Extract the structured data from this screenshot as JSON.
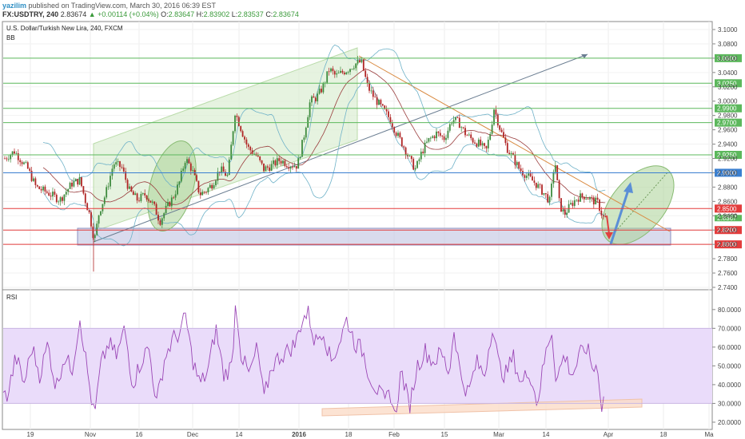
{
  "header": {
    "user": "yazilim",
    "published_text": "published on TradingView.com, March 30, 2016 06:39 EST",
    "symbol": "FX:USDTRY, 240",
    "last": "2.83674",
    "change": "▲ +0.00114 (+0.04%)",
    "o_label": "O:",
    "o_value": "2.83647",
    "h_label": "H:",
    "h_value": "2.83902",
    "l_label": "L:",
    "l_value": "2.83537",
    "c_label": "C:",
    "c_value": "2.83674"
  },
  "chart_data": [
    {
      "type": "candlestick",
      "title": "U.S. Dollar/Turkish New Lira, 240, FXCM",
      "indicator": "BB",
      "ylim": [
        2.74,
        3.1
      ],
      "y_ticks": [
        "3.1000",
        "3.0800",
        "3.0600",
        "3.0400",
        "3.0200",
        "3.0000",
        "2.9800",
        "2.9600",
        "2.9400",
        "2.9200",
        "2.9000",
        "2.8800",
        "2.8600",
        "2.8400",
        "2.8200",
        "2.8000",
        "2.7800",
        "2.7600",
        "2.7400"
      ],
      "x_ticks": [
        "19",
        "Nov",
        "16",
        "Dec",
        "14",
        "2016",
        "18",
        "Feb",
        "15",
        "Mar",
        "14",
        "Apr",
        "18",
        "Ma"
      ],
      "price_path": [
        [
          0,
          2.915
        ],
        [
          18,
          2.93
        ],
        [
          35,
          2.905
        ],
        [
          45,
          2.88
        ],
        [
          60,
          2.872
        ],
        [
          75,
          2.862
        ],
        [
          90,
          2.885
        ],
        [
          100,
          2.89
        ],
        [
          107,
          2.86
        ],
        [
          112,
          2.842
        ],
        [
          118,
          2.805
        ],
        [
          124,
          2.845
        ],
        [
          132,
          2.87
        ],
        [
          142,
          2.913
        ],
        [
          152,
          2.908
        ],
        [
          162,
          2.875
        ],
        [
          172,
          2.862
        ],
        [
          182,
          2.87
        ],
        [
          192,
          2.855
        ],
        [
          200,
          2.832
        ],
        [
          208,
          2.85
        ],
        [
          216,
          2.865
        ],
        [
          224,
          2.885
        ],
        [
          232,
          2.92
        ],
        [
          240,
          2.905
        ],
        [
          250,
          2.87
        ],
        [
          258,
          2.875
        ],
        [
          266,
          2.885
        ],
        [
          275,
          2.905
        ],
        [
          285,
          2.895
        ],
        [
          294,
          2.985
        ],
        [
          302,
          2.96
        ],
        [
          310,
          2.935
        ],
        [
          320,
          2.925
        ],
        [
          330,
          2.905
        ],
        [
          340,
          2.91
        ],
        [
          350,
          2.918
        ],
        [
          360,
          2.912
        ],
        [
          372,
          2.91
        ],
        [
          380,
          2.95
        ],
        [
          388,
          3.0
        ],
        [
          396,
          3.005
        ],
        [
          404,
          3.02
        ],
        [
          412,
          3.045
        ],
        [
          420,
          3.035
        ],
        [
          428,
          3.04
        ],
        [
          436,
          3.045
        ],
        [
          444,
          3.052
        ],
        [
          452,
          3.055
        ],
        [
          460,
          3.02
        ],
        [
          468,
          3.005
        ],
        [
          478,
          2.99
        ],
        [
          488,
          2.975
        ],
        [
          496,
          2.955
        ],
        [
          506,
          2.935
        ],
        [
          514,
          2.915
        ],
        [
          520,
          2.905
        ],
        [
          528,
          2.93
        ],
        [
          536,
          2.945
        ],
        [
          546,
          2.955
        ],
        [
          556,
          2.948
        ],
        [
          566,
          2.975
        ],
        [
          574,
          2.97
        ],
        [
          582,
          2.955
        ],
        [
          592,
          2.945
        ],
        [
          600,
          2.94
        ],
        [
          608,
          2.93
        ],
        [
          614,
          2.96
        ],
        [
          618,
          2.99
        ],
        [
          626,
          2.96
        ],
        [
          634,
          2.935
        ],
        [
          642,
          2.92
        ],
        [
          650,
          2.905
        ],
        [
          660,
          2.895
        ],
        [
          670,
          2.885
        ],
        [
          680,
          2.872
        ],
        [
          688,
          2.86
        ],
        [
          694,
          2.92
        ],
        [
          700,
          2.855
        ],
        [
          706,
          2.842
        ],
        [
          714,
          2.855
        ],
        [
          722,
          2.865
        ],
        [
          732,
          2.868
        ],
        [
          740,
          2.862
        ],
        [
          748,
          2.858
        ],
        [
          754,
          2.838
        ],
        [
          758,
          2.836
        ]
      ],
      "horizontal_levels": [
        {
          "label": "3.0600",
          "color": "#5cb85c"
        },
        {
          "label": "3.0250",
          "color": "#5cb85c"
        },
        {
          "label": "2.9900",
          "color": "#5cb85c"
        },
        {
          "label": "2.9700",
          "color": "#5cb85c"
        },
        {
          "label": "2.9250",
          "color": "#5cb85c"
        },
        {
          "label": "2.9000",
          "color": "#3a7fd0"
        },
        {
          "label": "2.8500",
          "color": "#e33d3d"
        },
        {
          "label": "2.8200",
          "color": "#e33d3d"
        },
        {
          "label": "2.8000",
          "color": "#e33d3d"
        }
      ],
      "axis_overlap_labels": [
        "2.8387",
        "2.8367"
      ]
    },
    {
      "type": "line",
      "title": "RSI",
      "ylim": [
        17,
        88
      ],
      "y_ticks": [
        "80.0000",
        "70.0000",
        "60.0000",
        "50.0000",
        "40.0000",
        "30.0000",
        "20.0000"
      ],
      "band": [
        30,
        70
      ],
      "rsi_path": [
        [
          0,
          32
        ],
        [
          10,
          35
        ],
        [
          20,
          55
        ],
        [
          30,
          40
        ],
        [
          40,
          60
        ],
        [
          50,
          45
        ],
        [
          60,
          62
        ],
        [
          70,
          38
        ],
        [
          80,
          55
        ],
        [
          90,
          48
        ],
        [
          100,
          76
        ],
        [
          110,
          45
        ],
        [
          118,
          22
        ],
        [
          126,
          50
        ],
        [
          136,
          62
        ],
        [
          146,
          55
        ],
        [
          156,
          70
        ],
        [
          166,
          40
        ],
        [
          176,
          52
        ],
        [
          186,
          60
        ],
        [
          196,
          30
        ],
        [
          206,
          54
        ],
        [
          216,
          64
        ],
        [
          226,
          68
        ],
        [
          232,
          77
        ],
        [
          240,
          55
        ],
        [
          250,
          40
        ],
        [
          260,
          47
        ],
        [
          270,
          70
        ],
        [
          280,
          45
        ],
        [
          290,
          50
        ],
        [
          295,
          85
        ],
        [
          302,
          55
        ],
        [
          312,
          45
        ],
        [
          322,
          60
        ],
        [
          330,
          32
        ],
        [
          340,
          50
        ],
        [
          350,
          55
        ],
        [
          360,
          58
        ],
        [
          370,
          62
        ],
        [
          378,
          75
        ],
        [
          386,
          78
        ],
        [
          394,
          62
        ],
        [
          404,
          70
        ],
        [
          414,
          52
        ],
        [
          424,
          62
        ],
        [
          434,
          75
        ],
        [
          444,
          62
        ],
        [
          454,
          58
        ],
        [
          462,
          45
        ],
        [
          472,
          37
        ],
        [
          482,
          30
        ],
        [
          488,
          37
        ],
        [
          494,
          22
        ],
        [
          502,
          48
        ],
        [
          512,
          28
        ],
        [
          522,
          50
        ],
        [
          532,
          58
        ],
        [
          542,
          52
        ],
        [
          552,
          57
        ],
        [
          562,
          46
        ],
        [
          568,
          70
        ],
        [
          576,
          45
        ],
        [
          586,
          35
        ],
        [
          596,
          52
        ],
        [
          606,
          45
        ],
        [
          616,
          72
        ],
        [
          624,
          50
        ],
        [
          632,
          45
        ],
        [
          642,
          55
        ],
        [
          652,
          40
        ],
        [
          662,
          48
        ],
        [
          672,
          30
        ],
        [
          682,
          55
        ],
        [
          690,
          70
        ],
        [
          696,
          42
        ],
        [
          706,
          56
        ],
        [
          716,
          45
        ],
        [
          726,
          56
        ],
        [
          734,
          60
        ],
        [
          742,
          48
        ],
        [
          748,
          50
        ],
        [
          752,
          28
        ],
        [
          756,
          33
        ]
      ]
    }
  ]
}
